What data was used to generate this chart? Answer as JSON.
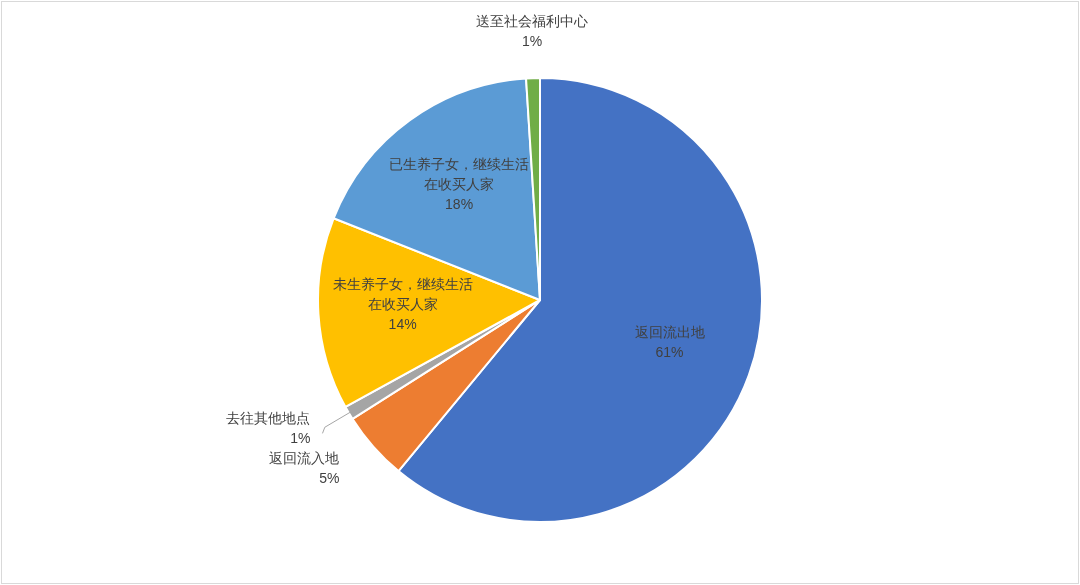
{
  "chart_data": {
    "type": "pie",
    "categories": [
      "返回流出地",
      "返回流入地",
      "去往其他地点",
      "未生养子女，继续生活在收买人家",
      "已生养子女，继续生活在收买人家",
      "送至社会福利中心"
    ],
    "values": [
      61,
      5,
      1,
      14,
      18,
      1
    ],
    "colors": [
      "#4472c4",
      "#ed7d31",
      "#a5a5a5",
      "#ffc000",
      "#5b9bd5",
      "#70ad47"
    ],
    "value_labels": [
      "61%",
      "5%",
      "1%",
      "14%",
      "18%",
      "1%"
    ]
  }
}
